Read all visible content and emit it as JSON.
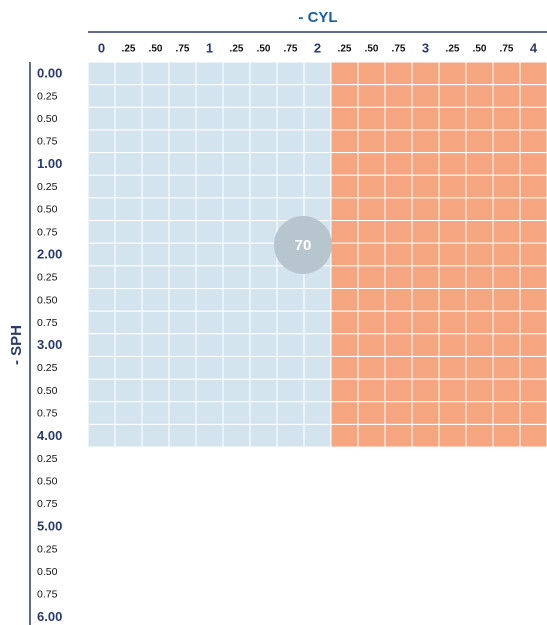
{
  "title": "- CYL",
  "axis_label": "- SPH",
  "cyl_labels": [
    "0",
    ".25",
    ".50",
    ".75",
    "1",
    ".25",
    ".50",
    ".75",
    "2",
    ".25",
    ".50",
    ".75",
    "3",
    ".25",
    ".50",
    ".75",
    "4"
  ],
  "sph_labels": [
    "0.00",
    "0.25",
    "0.50",
    "0.75",
    "1.00",
    "0.25",
    "0.50",
    "0.75",
    "2.00",
    "0.25",
    "0.50",
    "0.75",
    "3.00",
    "0.25",
    "0.50",
    "0.75",
    "4.00",
    "0.25",
    "0.50",
    "0.75",
    "5.00",
    "0.25",
    "0.50",
    "0.75",
    "6.00"
  ],
  "badge": "70"
}
